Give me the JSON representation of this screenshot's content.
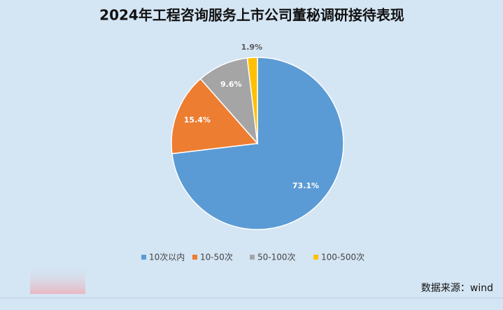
{
  "chart_data": {
    "type": "pie",
    "title": "2024年工程咨询服务上市公司董秘调研接待表现",
    "categories": [
      "10次以内",
      "10-50次",
      "50-100次",
      "100-500次"
    ],
    "values": [
      73.1,
      15.4,
      9.6,
      1.9
    ],
    "value_labels": [
      "73.1%",
      "15.4%",
      "9.6%",
      "1.9%"
    ],
    "colors": [
      "#5b9bd5",
      "#ed7d31",
      "#a5a5a5",
      "#ffc000"
    ],
    "legend": "bottom",
    "source": "数据来源：wind"
  }
}
